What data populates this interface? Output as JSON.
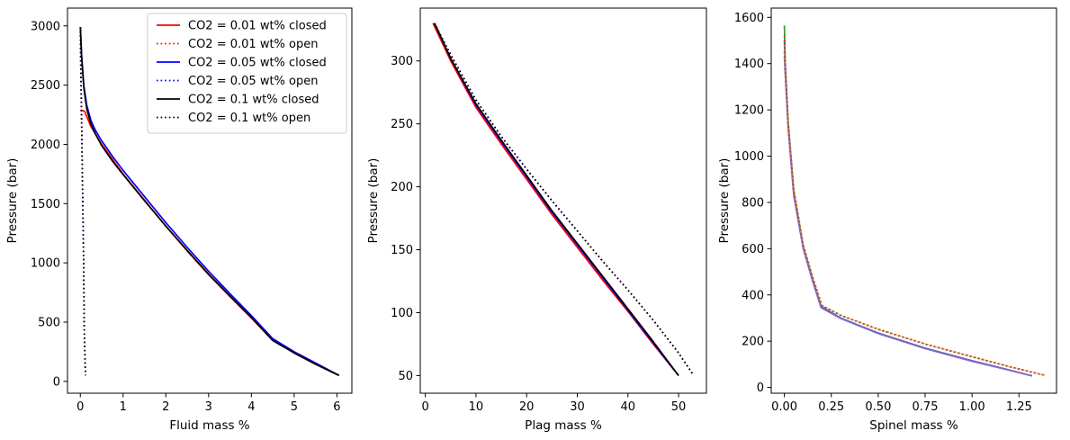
{
  "chart_data": [
    {
      "type": "line",
      "xlabel": "Fluid mass %",
      "ylabel": "Pressure (bar)",
      "xlim": [
        -0.3,
        6.35
      ],
      "ylim": [
        -100,
        3150
      ],
      "xticks": [
        0,
        1,
        2,
        3,
        4,
        5,
        6
      ],
      "yticks": [
        0,
        500,
        1000,
        1500,
        2000,
        2500,
        3000
      ],
      "legend": "top-right",
      "series": [
        {
          "name": "CO2 = 0.01 wt% closed",
          "color": "#ff0000",
          "dash": "solid",
          "x": [
            0,
            0.1,
            0.25,
            0.5,
            1,
            1.5,
            2,
            2.5,
            3,
            3.5,
            4,
            4.5,
            5,
            5.5,
            6.05
          ],
          "y": [
            2290,
            2280,
            2150,
            2000,
            1750,
            1530,
            1310,
            1100,
            900,
            715,
            535,
            345,
            240,
            145,
            50
          ]
        },
        {
          "name": "CO2 = 0.01 wt% open",
          "color": "#ff0000",
          "dash": "dotted",
          "x": [
            0,
            0.01,
            0.03,
            0.05,
            0.07,
            0.08,
            0.09,
            0.1,
            0.12
          ],
          "y": [
            2990,
            2700,
            2200,
            1700,
            1200,
            900,
            500,
            300,
            50
          ]
        },
        {
          "name": "CO2 = 0.05 wt% closed",
          "color": "#0000ff",
          "dash": "solid",
          "x": [
            0,
            0.03,
            0.08,
            0.15,
            0.25,
            0.35,
            0.5,
            0.75,
            1,
            1.5,
            2,
            2.5,
            3,
            3.5,
            4,
            4.5,
            5,
            5.5,
            6.05
          ],
          "y": [
            2990,
            2750,
            2500,
            2330,
            2200,
            2120,
            2030,
            1900,
            1780,
            1560,
            1340,
            1130,
            930,
            740,
            555,
            360,
            250,
            155,
            50
          ]
        },
        {
          "name": "CO2 = 0.05 wt% open",
          "color": "#0000ff",
          "dash": "dotted",
          "x": [
            0,
            0.01,
            0.03,
            0.05,
            0.07,
            0.08,
            0.09,
            0.1,
            0.12
          ],
          "y": [
            2990,
            2700,
            2200,
            1700,
            1200,
            900,
            500,
            300,
            50
          ]
        },
        {
          "name": "CO2 = 0.1 wt% closed",
          "color": "#000000",
          "dash": "solid",
          "x": [
            0,
            0.03,
            0.08,
            0.15,
            0.25,
            0.35,
            0.5,
            0.75,
            1,
            1.5,
            2,
            2.5,
            3,
            3.5,
            4,
            4.5,
            5,
            5.5,
            6.05
          ],
          "y": [
            2990,
            2740,
            2480,
            2300,
            2170,
            2090,
            1990,
            1860,
            1745,
            1525,
            1310,
            1105,
            905,
            720,
            540,
            345,
            240,
            145,
            50
          ]
        },
        {
          "name": "CO2 = 0.1 wt% open",
          "color": "#000000",
          "dash": "dotted",
          "x": [
            0,
            0.01,
            0.03,
            0.05,
            0.07,
            0.08,
            0.09,
            0.1,
            0.12
          ],
          "y": [
            2990,
            2700,
            2200,
            1700,
            1200,
            900,
            500,
            300,
            50
          ]
        }
      ]
    },
    {
      "type": "line",
      "xlabel": "Plag mass %",
      "ylabel": "Pressure (bar)",
      "xlim": [
        -1,
        55.5
      ],
      "ylim": [
        36,
        342
      ],
      "xticks": [
        0,
        10,
        20,
        30,
        40,
        50
      ],
      "yticks": [
        50,
        100,
        150,
        200,
        250,
        300
      ],
      "series": [
        {
          "color": "#ff0000",
          "dash": "solid",
          "x": [
            1.5,
            5,
            10,
            15,
            20,
            25,
            30,
            35,
            40,
            45,
            50
          ],
          "y": [
            330,
            300,
            263,
            234,
            206,
            178,
            152,
            126,
            101,
            75,
            50
          ]
        },
        {
          "color": "#ff0000",
          "dash": "dotted",
          "x": [
            1.8,
            5,
            10,
            15,
            20,
            25,
            30,
            35,
            40,
            45,
            50,
            53
          ],
          "y": [
            330,
            305,
            269,
            240,
            214,
            189,
            165,
            141,
            118,
            94,
            68,
            50
          ]
        },
        {
          "color": "#0000ff",
          "dash": "solid",
          "x": [
            1.8,
            5,
            10,
            15,
            20,
            25,
            30,
            35,
            40,
            45,
            50
          ],
          "y": [
            330,
            302,
            265,
            236,
            208,
            180,
            154,
            128,
            102,
            76,
            50
          ]
        },
        {
          "color": "#0000ff",
          "dash": "dotted",
          "x": [
            1.8,
            5,
            10,
            15,
            20,
            25,
            30,
            35,
            40,
            45,
            50,
            53
          ],
          "y": [
            330,
            305,
            269,
            240,
            214,
            189,
            165,
            141,
            118,
            94,
            68,
            50
          ]
        },
        {
          "color": "#000000",
          "dash": "solid",
          "x": [
            1.8,
            5,
            10,
            15,
            20,
            25,
            30,
            35,
            40,
            45,
            50
          ],
          "y": [
            330,
            302,
            266,
            237,
            209,
            181,
            155,
            129,
            103,
            77,
            50
          ]
        },
        {
          "color": "#000000",
          "dash": "dotted",
          "x": [
            1.8,
            5,
            10,
            15,
            20,
            25,
            30,
            35,
            40,
            45,
            50,
            53
          ],
          "y": [
            330,
            305,
            269,
            240,
            214,
            189,
            165,
            141,
            118,
            94,
            68,
            50
          ]
        }
      ]
    },
    {
      "type": "line",
      "xlabel": "Spinel mass %",
      "ylabel": "Pressure (bar)",
      "xlim": [
        -0.07,
        1.45
      ],
      "ylim": [
        -25,
        1640
      ],
      "xticks": [
        0.0,
        0.25,
        0.5,
        0.75,
        1.0,
        1.25
      ],
      "xtick_labels": [
        "0.00",
        "0.25",
        "0.50",
        "0.75",
        "1.00",
        "1.25"
      ],
      "yticks": [
        0,
        200,
        400,
        600,
        800,
        1000,
        1200,
        1400,
        1600
      ],
      "series": [
        {
          "color": "#2ca02c",
          "dash": "solid",
          "x": [
            0.0,
            0.005,
            0.02,
            0.05,
            0.1,
            0.15,
            0.195,
            0.3,
            0.5,
            0.75,
            1.0,
            1.2,
            1.32
          ],
          "y": [
            1565,
            1400,
            1150,
            850,
            610,
            470,
            350,
            300,
            235,
            170,
            115,
            75,
            50
          ]
        },
        {
          "color": "#1f77b4",
          "dash": "solid",
          "x": [
            0.0,
            0.005,
            0.02,
            0.05,
            0.1,
            0.15,
            0.195,
            0.3,
            0.5,
            0.75,
            1.0,
            1.2,
            1.32
          ],
          "y": [
            1500,
            1380,
            1130,
            840,
            605,
            465,
            350,
            300,
            235,
            170,
            115,
            75,
            50
          ]
        },
        {
          "color": "#8c62c8",
          "dash": "solid",
          "x": [
            0.0,
            0.005,
            0.02,
            0.05,
            0.1,
            0.15,
            0.195,
            0.3,
            0.5,
            0.75,
            1.0,
            1.2,
            1.32
          ],
          "y": [
            1430,
            1350,
            1120,
            830,
            600,
            460,
            345,
            298,
            233,
            168,
            113,
            74,
            50
          ]
        },
        {
          "color": "#d62728",
          "dash": "dotted",
          "x": [
            0.0,
            0.005,
            0.02,
            0.05,
            0.1,
            0.15,
            0.2,
            0.3,
            0.5,
            0.75,
            1.0,
            1.2,
            1.39
          ],
          "y": [
            1520,
            1400,
            1150,
            860,
            620,
            480,
            355,
            312,
            252,
            188,
            133,
            90,
            52
          ]
        },
        {
          "color": "#ff7f0e",
          "dash": "dotted",
          "x": [
            0.0,
            0.005,
            0.02,
            0.05,
            0.1,
            0.15,
            0.2,
            0.3,
            0.5,
            0.75,
            1.0,
            1.2,
            1.39
          ],
          "y": [
            1480,
            1390,
            1140,
            855,
            615,
            478,
            355,
            312,
            252,
            188,
            133,
            90,
            52
          ]
        },
        {
          "color": "#8c564b",
          "dash": "dotted",
          "x": [
            0.0,
            0.005,
            0.02,
            0.05,
            0.1,
            0.15,
            0.2,
            0.3,
            0.5,
            0.75,
            1.0,
            1.2,
            1.39
          ],
          "y": [
            1450,
            1380,
            1135,
            850,
            612,
            475,
            354,
            311,
            251,
            187,
            132,
            89,
            52
          ]
        }
      ]
    }
  ]
}
